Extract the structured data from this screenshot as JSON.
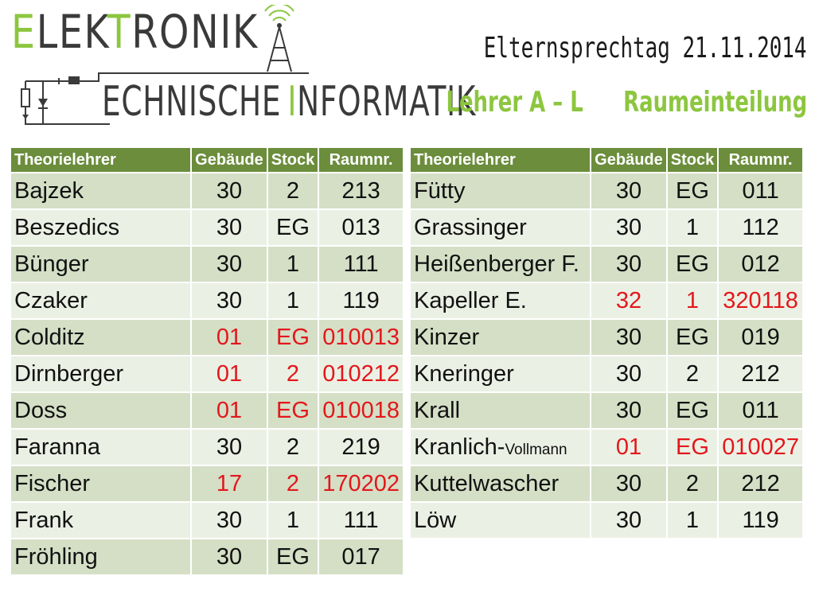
{
  "logo": {
    "line1_a": "E",
    "line1_b": "LEK",
    "line1_c": "T",
    "line1_d": "RONIK",
    "line2_a": "ECHNISCHE",
    "line2_b": "I",
    "line2_c": "NFORMATIK"
  },
  "header": {
    "title": "Elternsprechtag 21.11.2014",
    "subtitle_left": "Lehrer A – L",
    "subtitle_right": "Raumeinteilung"
  },
  "table_headers": {
    "teacher": "Theorielehrer",
    "building": "Gebäude",
    "floor": "Stock",
    "room": "Raumnr."
  },
  "left_rows": [
    {
      "name": "Bajzek",
      "building": "30",
      "floor": "2",
      "room": "213",
      "red": false
    },
    {
      "name": "Beszedics",
      "building": "30",
      "floor": "EG",
      "room": "013",
      "red": false
    },
    {
      "name": "Bünger",
      "building": "30",
      "floor": "1",
      "room": "111",
      "red": false
    },
    {
      "name": "Czaker",
      "building": "30",
      "floor": "1",
      "room": "119",
      "red": false
    },
    {
      "name": "Colditz",
      "building": "01",
      "floor": "EG",
      "room": "010013",
      "red": true
    },
    {
      "name": "Dirnberger",
      "building": "01",
      "floor": "2",
      "room": "010212",
      "red": true
    },
    {
      "name": "Doss",
      "building": "01",
      "floor": "EG",
      "room": "010018",
      "red": true
    },
    {
      "name": "Faranna",
      "building": "30",
      "floor": "2",
      "room": "219",
      "red": false
    },
    {
      "name": "Fischer",
      "building": "17",
      "floor": "2",
      "room": "170202",
      "red": true
    },
    {
      "name": "Frank",
      "building": "30",
      "floor": "1",
      "room": "111",
      "red": false
    },
    {
      "name": "Fröhling",
      "building": "30",
      "floor": "EG",
      "room": "017",
      "red": false
    }
  ],
  "right_rows": [
    {
      "name": "Fütty",
      "suffix": "",
      "building": "30",
      "floor": "EG",
      "room": "011",
      "red": false
    },
    {
      "name": "Grassinger",
      "suffix": "",
      "building": "30",
      "floor": "1",
      "room": "112",
      "red": false
    },
    {
      "name": "Heißenberger F.",
      "suffix": "",
      "building": "30",
      "floor": "EG",
      "room": "012",
      "red": false
    },
    {
      "name": "Kapeller E.",
      "suffix": "",
      "building": "32",
      "floor": "1",
      "room": "320118",
      "red": true
    },
    {
      "name": "Kinzer",
      "suffix": "",
      "building": "30",
      "floor": "EG",
      "room": "019",
      "red": false
    },
    {
      "name": "Kneringer",
      "suffix": "",
      "building": "30",
      "floor": "2",
      "room": "212",
      "red": false
    },
    {
      "name": "Krall",
      "suffix": "",
      "building": "30",
      "floor": "EG",
      "room": "011",
      "red": false
    },
    {
      "name": "Kranlich-",
      "suffix": "Vollmann",
      "building": "01",
      "floor": "EG",
      "room": "010027",
      "red": true
    },
    {
      "name": "Kuttelwascher",
      "suffix": "",
      "building": "30",
      "floor": "2",
      "room": "212",
      "red": false
    },
    {
      "name": "Löw",
      "suffix": "",
      "building": "30",
      "floor": "1",
      "room": "119",
      "red": false
    }
  ],
  "colors": {
    "accent_green": "#8cc63f",
    "header_green": "#6b8d3c",
    "row_dark": "#d4dfc6",
    "row_light": "#ebf0e4",
    "highlight_red": "#e3171c"
  },
  "icons": [
    "antenna-tower-icon",
    "circuit-diagram-icon"
  ]
}
